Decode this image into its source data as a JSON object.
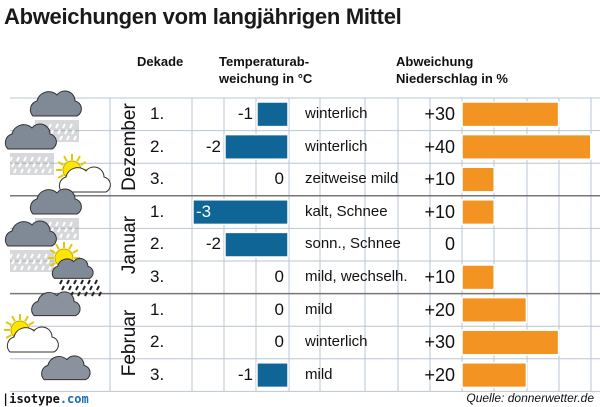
{
  "title": "Abweichungen vom langjährigen Mittel",
  "headers": {
    "dekade": "Dekade",
    "temp_line1": "Temperaturab-",
    "temp_line2": "weichung in °C",
    "precip_line1": "Abweichung",
    "precip_line2": "Niederschlag in %"
  },
  "colors": {
    "temperature_bar": "#0f6596",
    "precip_bar": "#f39422",
    "grid": "#b9c6d3",
    "month_divider": "#777777"
  },
  "chart_data": {
    "type": "bar",
    "months": [
      {
        "name": "Dezember",
        "rows": [
          0,
          1,
          2
        ]
      },
      {
        "name": "Januar",
        "rows": [
          3,
          4,
          5
        ]
      },
      {
        "name": "Februar",
        "rows": [
          6,
          7,
          8
        ]
      }
    ],
    "rows": [
      {
        "dekade": "1.",
        "temp": -1,
        "temp_label": "-1",
        "condition": "winterlich",
        "precip": 30,
        "precip_label": "+30",
        "icon": "rain-cloud-icon"
      },
      {
        "dekade": "2.",
        "temp": -2,
        "temp_label": "-2",
        "condition": "winterlich",
        "precip": 40,
        "precip_label": "+40",
        "icon": "rain-cloud-icon"
      },
      {
        "dekade": "3.",
        "temp": 0,
        "temp_label": "0",
        "condition": "zeitweise mild",
        "precip": 10,
        "precip_label": "+10",
        "icon": "sun-cloud-icon"
      },
      {
        "dekade": "1.",
        "temp": -3,
        "temp_label": "-3",
        "condition": "kalt, Schnee",
        "precip": 10,
        "precip_label": "+10",
        "icon": "rain-cloud-icon"
      },
      {
        "dekade": "2.",
        "temp": -2,
        "temp_label": "-2",
        "condition": "sonn., Schnee",
        "precip": 0,
        "precip_label": "0",
        "icon": "rain-cloud-icon"
      },
      {
        "dekade": "3.",
        "temp": 0,
        "temp_label": "0",
        "condition": "mild, wechselh.",
        "precip": 10,
        "precip_label": "+10",
        "icon": "sun-cloud-rain-icon"
      },
      {
        "dekade": "1.",
        "temp": 0,
        "temp_label": "0",
        "condition": "mild",
        "precip": 20,
        "precip_label": "+20",
        "icon": "cloud-icon"
      },
      {
        "dekade": "2.",
        "temp": 0,
        "temp_label": "0",
        "condition": "winterlich",
        "precip": 30,
        "precip_label": "+30",
        "icon": "sun-cloud-icon"
      },
      {
        "dekade": "3.",
        "temp": -1,
        "temp_label": "-1",
        "condition": "mild",
        "precip": 20,
        "precip_label": "+20",
        "icon": "cloud-icon"
      }
    ],
    "temp_range": [
      -3,
      0
    ],
    "precip_range": [
      0,
      40
    ]
  },
  "footer": {
    "logo_name": "isotype",
    "logo_domain": ".com",
    "source": "Quelle: donnerwetter.de"
  }
}
